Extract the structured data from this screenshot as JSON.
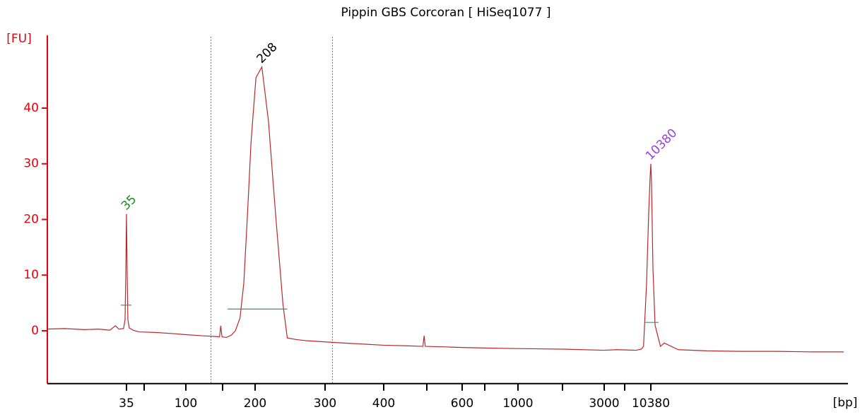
{
  "chart_data": {
    "type": "line",
    "title": "Pippin GBS Corcoran  [ HiSeq1077 ]",
    "ylabel": "[FU]",
    "xlabel": "[bp]",
    "x_scale": "ladder",
    "xlim": [
      7,
      190000
    ],
    "xticks": [
      35,
      {
        "value": 50,
        "label": null
      },
      100,
      {
        "value": 150,
        "label": null
      },
      200,
      300,
      400,
      {
        "value": 500,
        "label": null
      },
      600,
      {
        "value": 700,
        "label": null
      },
      1000,
      {
        "value": 2000,
        "label": null
      },
      3000,
      {
        "value": 7000,
        "label": null
      },
      10380
    ],
    "ylim": [
      -9.5,
      50
    ],
    "yticks": [
      0,
      10,
      20,
      30,
      40
    ],
    "axis_color": "#e8000b",
    "series": [
      {
        "color": "#b8282a",
        "x": [
          7,
          10,
          15,
          20,
          25,
          28,
          30,
          33,
          34,
          34.5,
          35,
          35.5,
          36,
          37,
          40,
          45,
          60,
          80,
          100,
          120,
          135,
          145,
          147,
          149,
          155,
          162,
          168,
          175,
          181,
          187,
          193,
          201,
          208,
          216,
          225,
          235,
          241,
          255,
          271,
          300,
          345,
          400,
          450,
          490,
          493,
          496,
          550,
          600,
          700,
          1000,
          2000,
          3000,
          5000,
          8300,
          9000,
          9300,
          9737,
          10054,
          10270,
          10380,
          10491,
          10717,
          11065,
          11670,
          12000,
          12700,
          15720,
          24080,
          40000,
          69800,
          120000,
          190000
        ],
        "values": [
          0.3,
          0.4,
          0.2,
          0.3,
          0.1,
          0.9,
          0.3,
          0.4,
          2,
          10,
          21,
          10,
          2,
          0.5,
          0.1,
          -0.2,
          -0.3,
          -0.5,
          -0.7,
          -0.9,
          -1.0,
          -1.1,
          0.9,
          -1.1,
          -1.2,
          -0.8,
          0,
          2.3,
          8.6,
          21,
          34,
          45.5,
          47.4,
          37.8,
          21.3,
          4.8,
          -1.3,
          -1.6,
          -1.8,
          -2.0,
          -2.3,
          -2.6,
          -2.7,
          -2.8,
          -0.9,
          -2.8,
          -2.9,
          -3.0,
          -3.1,
          -3.2,
          -3.3,
          -3.5,
          -3.4,
          -3.5,
          -3.3,
          -2.8,
          8.6,
          21.3,
          27.7,
          30,
          26.4,
          11.2,
          1.0,
          -1.5,
          -2.8,
          -2.2,
          -3.4,
          -3.6,
          -3.7,
          -3.7,
          -3.8,
          -3.8
        ]
      }
    ],
    "peaks": {
      "x": [
        35,
        208,
        10380
      ],
      "y": [
        21,
        47.4,
        30
      ],
      "colors": [
        "#1a8a1a",
        "#000000",
        "#9a40e0"
      ],
      "width_level": [
        4.6,
        3.9,
        1.5
      ],
      "width_from": [
        31.2,
        156.8,
        9440
      ],
      "width_to": [
        38.6,
        241,
        11670
      ],
      "width_color": "#4a8a6a"
    },
    "region": [
      132,
      311
    ]
  }
}
